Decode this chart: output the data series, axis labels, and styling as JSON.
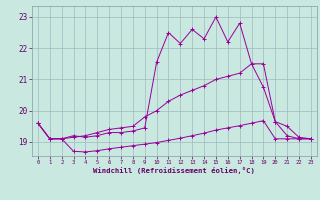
{
  "bg_color": "#c8e8e0",
  "line_color": "#990099",
  "grid_color": "#a0b8c0",
  "xlim": [
    -0.5,
    23.5
  ],
  "ylim": [
    18.55,
    23.35
  ],
  "xticks": [
    0,
    1,
    2,
    3,
    4,
    5,
    6,
    7,
    8,
    9,
    10,
    11,
    12,
    13,
    14,
    15,
    16,
    17,
    18,
    19,
    20,
    21,
    22,
    23
  ],
  "yticks": [
    19,
    20,
    21,
    22,
    23
  ],
  "xlabel": "Windchill (Refroidissement éolien,°C)",
  "line1_x": [
    0,
    1,
    2,
    3,
    4,
    5,
    6,
    7,
    8,
    9,
    10,
    11,
    12,
    13,
    14,
    15,
    16,
    17,
    18,
    19,
    20,
    21,
    22,
    23
  ],
  "line1_y": [
    19.6,
    19.1,
    19.1,
    19.2,
    19.15,
    19.2,
    19.3,
    19.3,
    19.35,
    19.45,
    21.55,
    22.5,
    22.15,
    22.6,
    22.3,
    23.0,
    22.2,
    22.8,
    21.5,
    21.5,
    19.65,
    19.5,
    19.15,
    19.1
  ],
  "line2_x": [
    0,
    1,
    2,
    3,
    4,
    5,
    6,
    7,
    8,
    9,
    10,
    11,
    12,
    13,
    14,
    15,
    16,
    17,
    18,
    19,
    20,
    21,
    22,
    23
  ],
  "line2_y": [
    19.6,
    19.1,
    19.1,
    19.15,
    19.2,
    19.3,
    19.4,
    19.45,
    19.5,
    19.8,
    20.0,
    20.3,
    20.5,
    20.65,
    20.8,
    21.0,
    21.1,
    21.2,
    21.5,
    20.75,
    19.65,
    19.2,
    19.1,
    19.1
  ],
  "line3_x": [
    0,
    1,
    2,
    3,
    4,
    5,
    6,
    7,
    8,
    9,
    10,
    11,
    12,
    13,
    14,
    15,
    16,
    17,
    18,
    19,
    20,
    21,
    22,
    23
  ],
  "line3_y": [
    19.6,
    19.1,
    19.1,
    18.7,
    18.68,
    18.72,
    18.78,
    18.83,
    18.88,
    18.93,
    18.98,
    19.05,
    19.12,
    19.2,
    19.28,
    19.38,
    19.45,
    19.52,
    19.6,
    19.68,
    19.1,
    19.1,
    19.1,
    19.1
  ]
}
